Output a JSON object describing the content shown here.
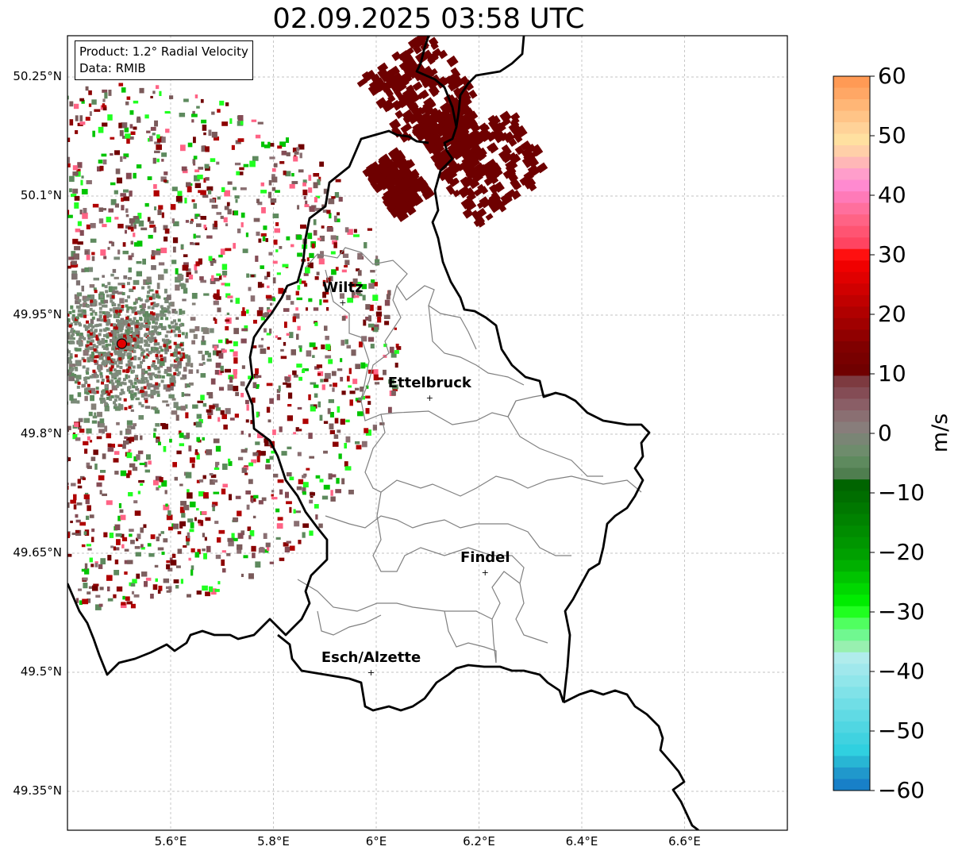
{
  "title": "02.09.2025 03:58 UTC",
  "info": {
    "product": "Product: 1.2° Radial Velocity",
    "data_source": "Data: RMIB"
  },
  "lat_ticks": [
    {
      "label": "50.25°N",
      "value": 50.25
    },
    {
      "label": "50.1°N",
      "value": 50.1
    },
    {
      "label": "49.95°N",
      "value": 49.95
    },
    {
      "label": "49.8°N",
      "value": 49.8
    },
    {
      "label": "49.65°N",
      "value": 49.65
    },
    {
      "label": "49.5°N",
      "value": 49.5
    },
    {
      "label": "49.35°N",
      "value": 49.35
    }
  ],
  "lon_ticks": [
    {
      "label": "5.6°E",
      "value": 5.6
    },
    {
      "label": "5.8°E",
      "value": 5.8
    },
    {
      "label": "6°E",
      "value": 6.0
    },
    {
      "label": "6.2°E",
      "value": 6.2
    },
    {
      "label": "6.4°E",
      "value": 6.4
    },
    {
      "label": "6.6°E",
      "value": 6.6
    }
  ],
  "cities": [
    {
      "name": "Wiltz",
      "lon": 5.935,
      "lat": 49.966
    },
    {
      "name": "Ettelbruck",
      "lon": 6.104,
      "lat": 49.846
    },
    {
      "name": "Findel",
      "lon": 6.212,
      "lat": 49.626
    },
    {
      "name": "Esch/Alzette",
      "lon": 5.99,
      "lat": 49.5
    }
  ],
  "radar_site": {
    "lon": 5.505,
    "lat": 49.914,
    "color": "#e00000"
  },
  "colorbar": {
    "label": "m/s",
    "min": -60,
    "max": 60,
    "ticks": [
      "60",
      "50",
      "40",
      "30",
      "20",
      "10",
      "0",
      "−10",
      "−20",
      "−30",
      "−40",
      "−50",
      "−60"
    ],
    "tick_values": [
      60,
      50,
      40,
      30,
      20,
      10,
      0,
      -10,
      -20,
      -30,
      -40,
      -50,
      -60
    ],
    "colors": [
      "#ff9a55",
      "#ffa765",
      "#ffb676",
      "#ffc487",
      "#ffd298",
      "#ffe0a0",
      "#ffcfa8",
      "#ffb7b7",
      "#ff9ecb",
      "#ff8ad0",
      "#ff7ab8",
      "#ff6f9d",
      "#ff6385",
      "#ff5472",
      "#ff4461",
      "#ff1010",
      "#f00000",
      "#e00000",
      "#d00000",
      "#c00000",
      "#b00000",
      "#a00000",
      "#900000",
      "#800000",
      "#780000",
      "#700000",
      "#7d3a40",
      "#844c55",
      "#8a5e66",
      "#8a6f72",
      "#887d7b",
      "#7a8575",
      "#6e8c6c",
      "#5e8a5e",
      "#4f7e4f",
      "#006400",
      "#006e00",
      "#007800",
      "#008200",
      "#008c00",
      "#009600",
      "#00a000",
      "#00b000",
      "#00c400",
      "#00d800",
      "#00ec00",
      "#20ff20",
      "#50ff60",
      "#70f890",
      "#98f0b0",
      "#b0ecec",
      "#a0e8ec",
      "#90e6ea",
      "#80e2e8",
      "#70dee6",
      "#60dae4",
      "#50d6e2",
      "#40d2e0",
      "#30d0e0",
      "#28b6d4",
      "#2098cc",
      "#1880c8"
    ]
  }
}
